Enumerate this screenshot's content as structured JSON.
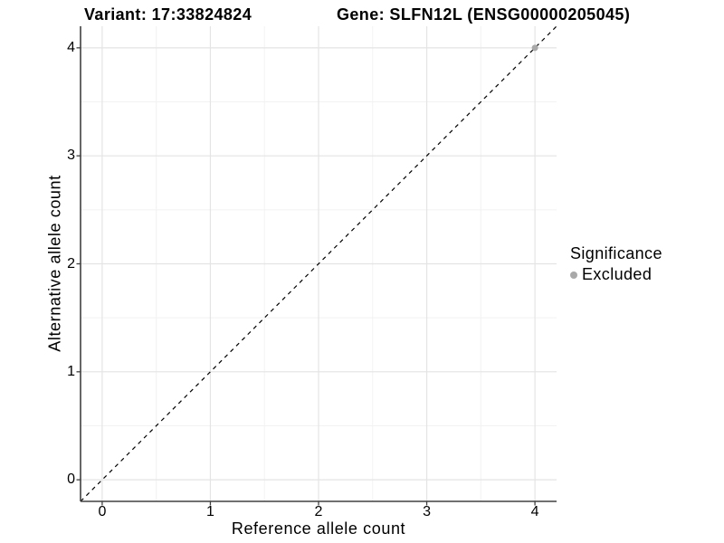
{
  "page": {
    "background": "#FFFFFF",
    "text_color": "#000000",
    "axis_line_color": "#404040"
  },
  "chart_data": {
    "type": "scatter",
    "title_left": "Variant: 17:33824824",
    "title_right": "Gene: SLFN12L (ENSG00000205045)",
    "xlabel": "Reference allele count",
    "ylabel": "Alternative allele count",
    "xlim": [
      -0.2,
      4.2
    ],
    "ylim": [
      -0.2,
      4.2
    ],
    "x_ticks": [
      0,
      1,
      2,
      3,
      4
    ],
    "y_ticks": [
      0,
      1,
      2,
      3,
      4
    ],
    "x_minor_ticks": [
      0.5,
      1.5,
      2.5,
      3.5
    ],
    "y_minor_ticks": [
      0.5,
      1.5,
      2.5,
      3.5
    ],
    "grid": {
      "show": true,
      "major_color": "#E4E4E4",
      "minor_color": "#F2F2F2"
    },
    "reference_line": {
      "type": "identity",
      "style": "dashed",
      "color": "#000000",
      "from": [
        -0.2,
        -0.2
      ],
      "to": [
        4.2,
        4.2
      ]
    },
    "series": [
      {
        "name": "Excluded",
        "color": "#A9A9A9",
        "points": [
          {
            "x": 4,
            "y": 4
          }
        ]
      }
    ],
    "legend": {
      "title": "Significance",
      "position": "right",
      "items": [
        {
          "label": "Excluded",
          "color": "#A9A9A9"
        }
      ]
    }
  }
}
